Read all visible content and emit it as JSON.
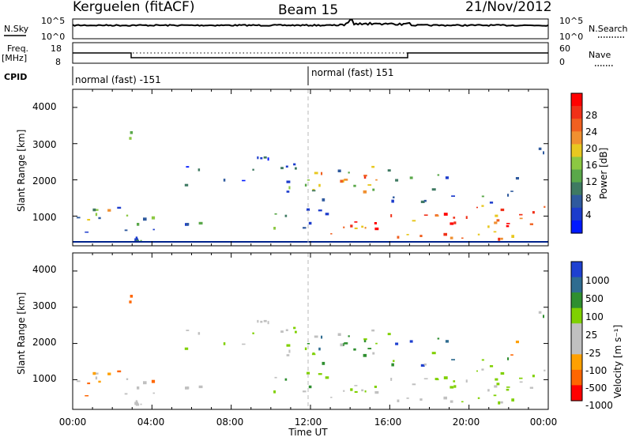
{
  "header": {
    "station": "Kerguelen (fitACF)",
    "beam": "Beam 15",
    "date": "21/Nov/2012"
  },
  "side_labels": {
    "nsky": "N.Sky",
    "freq": "Freq.",
    "freq_unit": "[MHz]",
    "cpid": "CPID",
    "nsearch": "N.Search",
    "nave": "Nave"
  },
  "cpid_labels": [
    "normal (fast) -151",
    "normal (fast) 151"
  ],
  "colors": {
    "power_scale": [
      "#0019ff",
      "#1c3ccc",
      "#2f5a9e",
      "#3f7a62",
      "#5aa84a",
      "#8cc842",
      "#e8c820",
      "#f09030",
      "#f06020",
      "#f03018",
      "#ff0000"
    ],
    "velocity_scale": [
      "#ff0000",
      "#ff6600",
      "#ffa000",
      "#c0c0c0",
      "#c0c0c0",
      "#7fd000",
      "#2f8f30",
      "#2f6c90",
      "#1e40d0"
    ]
  },
  "chart_data": [
    {
      "type": "line",
      "name": "noise-panel",
      "x": [
        "00:00",
        "04:00",
        "08:00",
        "12:00",
        "16:00",
        "20:00",
        "00:00"
      ],
      "yticks_left": [
        "10^5",
        "10^0"
      ],
      "yticks_right": [
        "10^5",
        "10^0"
      ]
    },
    {
      "type": "line",
      "name": "frequency-panel",
      "x": [
        "00:00",
        "04:00",
        "08:00",
        "12:00",
        "16:00",
        "20:00",
        "00:00"
      ],
      "yticks_left": [
        "18",
        "8"
      ],
      "yticks_right": [
        "60",
        "0"
      ]
    },
    {
      "type": "heatmap",
      "name": "power-panel",
      "x_categories": [
        "00:00",
        "04:00",
        "08:00",
        "12:00",
        "16:00",
        "20:00",
        "00:00"
      ],
      "ylabel": "Slant Range [km]",
      "yticks": [
        "4000",
        "3000",
        "2000",
        "1000"
      ],
      "colorbar_label": "Power [dB]",
      "colorbar_ticks": [
        "28",
        "24",
        "20",
        "16",
        "12",
        "8",
        "4"
      ]
    },
    {
      "type": "heatmap",
      "name": "velocity-panel",
      "x_categories": [
        "00:00",
        "04:00",
        "08:00",
        "12:00",
        "16:00",
        "20:00",
        "00:00"
      ],
      "xlabel": "Time UT",
      "ylabel": "Slant Range [km]",
      "yticks": [
        "4000",
        "3000",
        "2000",
        "1000"
      ],
      "colorbar_label": "Velocity [m s⁻¹]",
      "colorbar_ticks": [
        "1000",
        "500",
        "100",
        "25",
        "-25",
        "-100",
        "-500",
        "-1000"
      ]
    }
  ]
}
